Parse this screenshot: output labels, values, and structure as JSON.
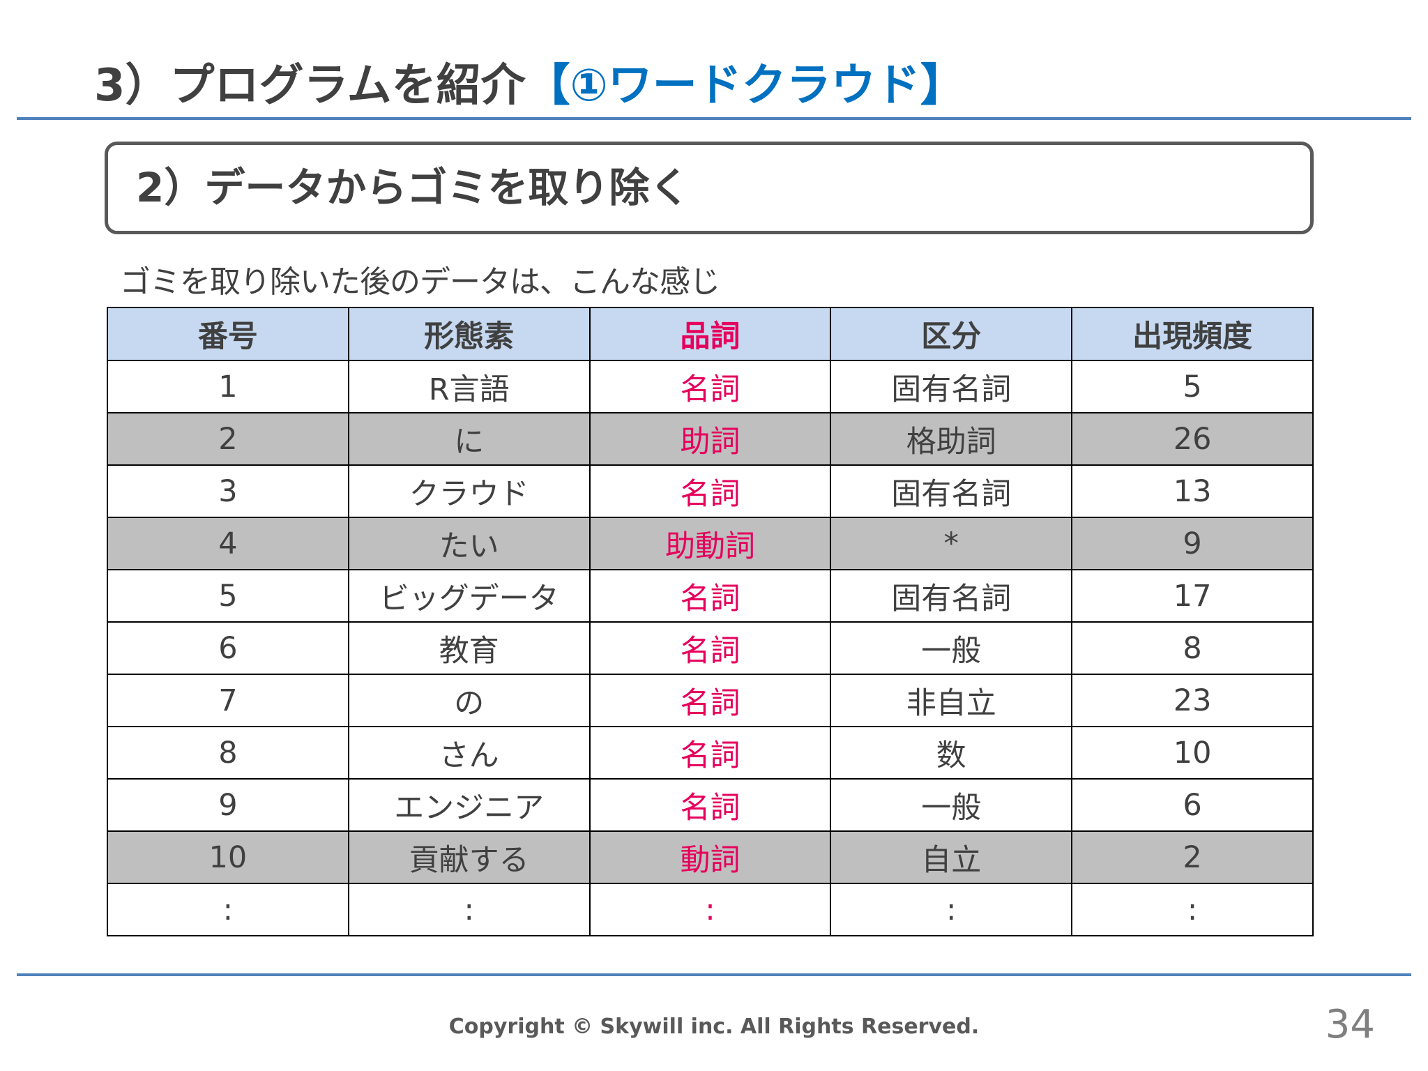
{
  "slide": {
    "title_main": "3）プログラムを紹介",
    "title_accent": "【①ワードクラウド】",
    "section_title": "2）データからゴミを取り除く",
    "caption": "ゴミを取り除いた後のデータは、こんな感じ",
    "footer": "Copyright © Skywill inc. All Rights Reserved.",
    "page_number": "34"
  },
  "table": {
    "headers": [
      "番号",
      "形態素",
      "品詞",
      "区分",
      "出現頻度"
    ],
    "rows": [
      [
        "1",
        "R言語",
        "名詞",
        "固有名詞",
        "5"
      ],
      [
        "2",
        "に",
        "助詞",
        "格助詞",
        "26"
      ],
      [
        "3",
        "クラウド",
        "名詞",
        "固有名詞",
        "13"
      ],
      [
        "4",
        "たい",
        "助動詞",
        "*",
        "9"
      ],
      [
        "5",
        "ビッグデータ",
        "名詞",
        "固有名詞",
        "17"
      ],
      [
        "6",
        "教育",
        "名詞",
        "一般",
        "8"
      ],
      [
        "7",
        "の",
        "名詞",
        "非自立",
        "23"
      ],
      [
        "8",
        "さん",
        "名詞",
        "数",
        "10"
      ],
      [
        "9",
        "エンジニア",
        "名詞",
        "一般",
        "6"
      ],
      [
        "10",
        "貢献する",
        "動詞",
        "自立",
        "2"
      ],
      [
        ":",
        ":",
        ":",
        ":",
        ":"
      ]
    ],
    "highlighted_rows": [
      2,
      4,
      10
    ]
  },
  "colors": {
    "accent_blue": "#0070C0",
    "rule_blue": "#4F81BD",
    "header_fill": "#C6D9F0",
    "part_of_speech_text": "#E6005C",
    "removed_row_fill": "#BFBFBF"
  }
}
